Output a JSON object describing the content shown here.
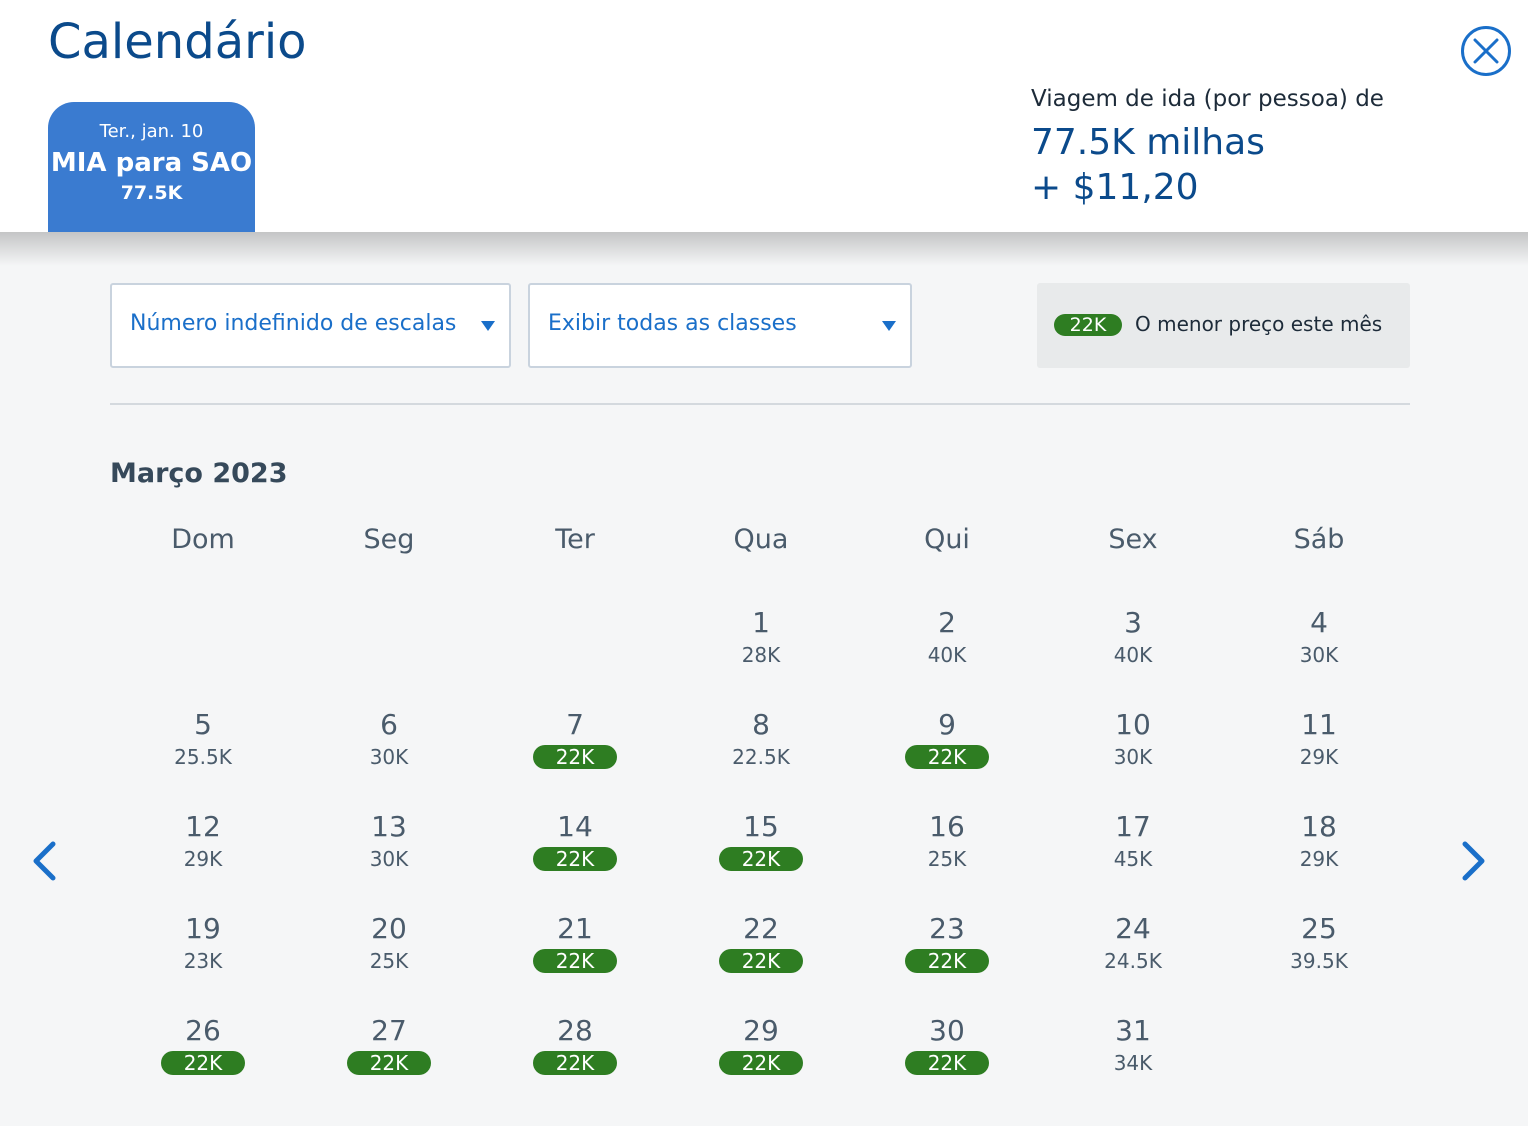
{
  "header": {
    "title": "Calendário",
    "close_icon": "close-icon",
    "trip_tab": {
      "date": "Ter., jan. 10",
      "route": "MIA para SAO",
      "miles": "77.5K"
    },
    "price": {
      "label": "Viagem de ida (por pessoa) de",
      "miles": "77.5K milhas",
      "cash": "+ $11,20"
    }
  },
  "filters": {
    "stops": "Número indefinido de escalas",
    "classes": "Exibir todas as classes",
    "legend_pill": "22K",
    "legend_text": "O menor preço este mês"
  },
  "calendar": {
    "month": "Março 2023",
    "weekdays": [
      "Dom",
      "Seg",
      "Ter",
      "Qua",
      "Qui",
      "Sex",
      "Sáb"
    ],
    "days": [
      {
        "day": "1",
        "price": "28K",
        "lowest": false
      },
      {
        "day": "2",
        "price": "40K",
        "lowest": false
      },
      {
        "day": "3",
        "price": "40K",
        "lowest": false
      },
      {
        "day": "4",
        "price": "30K",
        "lowest": false
      },
      {
        "day": "5",
        "price": "25.5K",
        "lowest": false
      },
      {
        "day": "6",
        "price": "30K",
        "lowest": false
      },
      {
        "day": "7",
        "price": "22K",
        "lowest": true
      },
      {
        "day": "8",
        "price": "22.5K",
        "lowest": false
      },
      {
        "day": "9",
        "price": "22K",
        "lowest": true
      },
      {
        "day": "10",
        "price": "30K",
        "lowest": false
      },
      {
        "day": "11",
        "price": "29K",
        "lowest": false
      },
      {
        "day": "12",
        "price": "29K",
        "lowest": false
      },
      {
        "day": "13",
        "price": "30K",
        "lowest": false
      },
      {
        "day": "14",
        "price": "22K",
        "lowest": true
      },
      {
        "day": "15",
        "price": "22K",
        "lowest": true
      },
      {
        "day": "16",
        "price": "25K",
        "lowest": false
      },
      {
        "day": "17",
        "price": "45K",
        "lowest": false
      },
      {
        "day": "18",
        "price": "29K",
        "lowest": false
      },
      {
        "day": "19",
        "price": "23K",
        "lowest": false
      },
      {
        "day": "20",
        "price": "25K",
        "lowest": false
      },
      {
        "day": "21",
        "price": "22K",
        "lowest": true
      },
      {
        "day": "22",
        "price": "22K",
        "lowest": true
      },
      {
        "day": "23",
        "price": "22K",
        "lowest": true
      },
      {
        "day": "24",
        "price": "24.5K",
        "lowest": false
      },
      {
        "day": "25",
        "price": "39.5K",
        "lowest": false
      },
      {
        "day": "26",
        "price": "22K",
        "lowest": true
      },
      {
        "day": "27",
        "price": "22K",
        "lowest": true
      },
      {
        "day": "28",
        "price": "22K",
        "lowest": true
      },
      {
        "day": "29",
        "price": "22K",
        "lowest": true
      },
      {
        "day": "30",
        "price": "22K",
        "lowest": true
      },
      {
        "day": "31",
        "price": "34K",
        "lowest": false
      }
    ],
    "prev_icon": "chevron-left-icon",
    "next_icon": "chevron-right-icon"
  },
  "colors": {
    "accent": "#1a6fc9",
    "title": "#0b4a8b",
    "tab": "#3a7bd0",
    "lowest_price": "#2e7d22"
  }
}
